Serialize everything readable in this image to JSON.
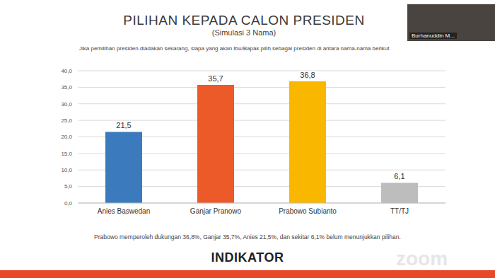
{
  "chart_data": {
    "type": "bar",
    "title": "PILIHAN KEPADA CALON PRESIDEN",
    "subtitle": "(Simulasi 3 Nama)",
    "categories": [
      "Anies Baswedan",
      "Ganjar Pranowo",
      "Prabowo Subianto",
      "TT/TJ"
    ],
    "values": [
      21.5,
      35.7,
      36.8,
      6.1
    ],
    "value_labels": [
      "21,5",
      "35,7",
      "36,8",
      "6,1"
    ],
    "colors": [
      "#3b7bbd",
      "#ec5a2a",
      "#f9b700",
      "#bdbdbd"
    ],
    "ylim": [
      0,
      40
    ],
    "yticks": [
      {
        "value": 0,
        "label": "0,0"
      },
      {
        "value": 5,
        "label": "5,0"
      },
      {
        "value": 10,
        "label": "10,0"
      },
      {
        "value": 15,
        "label": "15,0"
      },
      {
        "value": 20,
        "label": "20,0"
      },
      {
        "value": 25,
        "label": "25,0"
      },
      {
        "value": 30,
        "label": "30,0"
      },
      {
        "value": 35,
        "label": "35,0"
      },
      {
        "value": 40,
        "label": "40,0"
      }
    ],
    "grid": true,
    "data_labels": true
  },
  "slide": {
    "question": "Jika pemilihan presiden diadakan sekarang, siapa yang akan Ibu/Bapak pilih sebagai presiden di antara nama-nama berikut",
    "footnote": "Prabowo memperoleh dukungan 36,8%, Ganjar 35,7%, Anies 21,5%, dan sekitar 6,1% belum menunjukkan pilihan.",
    "logo": "INDIKATOR",
    "watermark": "zoom",
    "participant": "Burhanuddin M..."
  }
}
